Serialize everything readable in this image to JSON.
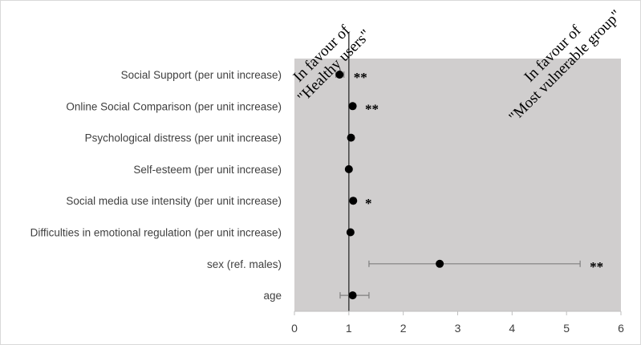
{
  "chart_data": {
    "type": "scatter",
    "subtype": "forest-plot",
    "categories": [
      "Social Support (per unit increase)",
      "Online Social Comparison (per unit increase)",
      "Psychological distress (per unit increase)",
      "Self-esteem (per unit increase)",
      "Social media use intensity (per unit increase)",
      "Difficulties in emotional regulation (per unit increase)",
      "sex (ref. males)",
      "age"
    ],
    "values": [
      0.83,
      1.07,
      1.04,
      1.0,
      1.08,
      1.03,
      2.67,
      1.07
    ],
    "ci_lower": [
      0.76,
      1.03,
      1.01,
      0.97,
      1.04,
      1.0,
      1.37,
      0.84
    ],
    "ci_upper": [
      0.91,
      1.12,
      1.07,
      1.04,
      1.12,
      1.06,
      5.25,
      1.37
    ],
    "significance": [
      "**",
      "**",
      "",
      "",
      "*",
      "",
      "**",
      ""
    ],
    "xlim": [
      0,
      6
    ],
    "xticks": [
      "0",
      "1",
      "2",
      "3",
      "4",
      "5",
      "6"
    ],
    "reference_line": 1,
    "annotations": {
      "left_line1": "In favour of",
      "left_line2": "\"Healthy users\"",
      "right_line1": "In favour of",
      "right_line2": "\"Most vulnerable group\""
    },
    "colors": {
      "plot_background": "#d0cece",
      "marker": "#000000",
      "reference_line": "#404040",
      "error_bar": "#7f7f7f"
    },
    "grid": false,
    "legend": "none"
  }
}
